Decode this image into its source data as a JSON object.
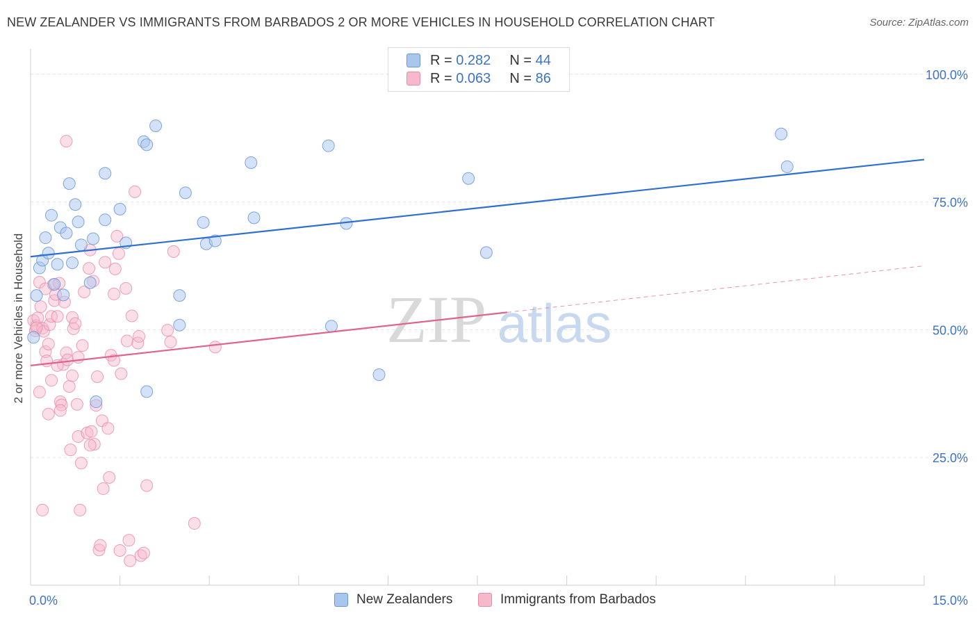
{
  "title": "NEW ZEALANDER VS IMMIGRANTS FROM BARBADOS 2 OR MORE VEHICLES IN HOUSEHOLD CORRELATION CHART",
  "source": "Source: ZipAtlas.com",
  "watermark": {
    "zip": "ZIP",
    "atlas": "atlas"
  },
  "legend": {
    "series1": {
      "r_label": "R =",
      "r_value": "0.282",
      "n_label": "N =",
      "n_value": "44"
    },
    "series2": {
      "r_label": "R =",
      "r_value": "0.063",
      "n_label": "N =",
      "n_value": "86"
    }
  },
  "bottom_legend": {
    "series1": "New Zealanders",
    "series2": "Immigrants from Barbados"
  },
  "colors": {
    "blue_fill": "#a9c6ef",
    "blue_stroke": "#6a97d6",
    "blue_line": "#2f6fcf",
    "pink_fill": "#f6b8cb",
    "pink_stroke": "#e98aa8",
    "pink_line": "#e0638d",
    "accent_text": "#3d72c4"
  },
  "chart_data": {
    "type": "scatter",
    "title": "NEW ZEALANDER VS IMMIGRANTS FROM BARBADOS 2 OR MORE VEHICLES IN HOUSEHOLD CORRELATION CHART",
    "xlabel": "",
    "ylabel": "2 or more Vehicles in Household",
    "xlim": [
      0,
      15
    ],
    "ylim": [
      0,
      105
    ],
    "x_tick_labels": {
      "min": "0.0%",
      "max": "15.0%"
    },
    "y_ticks": [
      {
        "value": 25,
        "label": "25.0%"
      },
      {
        "value": 50,
        "label": "50.0%"
      },
      {
        "value": 75,
        "label": "75.0%"
      },
      {
        "value": 100,
        "label": "100.0%"
      }
    ],
    "series": [
      {
        "name": "New Zealanders",
        "r": 0.282,
        "n": 44,
        "trend": {
          "x": [
            0,
            15
          ],
          "y": [
            64.3,
            83.3
          ],
          "dashed_from": null
        },
        "points": [
          [
            0.1,
            56.7
          ],
          [
            0.15,
            62.1
          ],
          [
            0.2,
            63.6
          ],
          [
            0.25,
            68.0
          ],
          [
            0.3,
            65.0
          ],
          [
            0.35,
            72.4
          ],
          [
            0.4,
            58.9
          ],
          [
            0.45,
            62.8
          ],
          [
            0.5,
            70.0
          ],
          [
            0.55,
            56.8
          ],
          [
            0.6,
            68.9
          ],
          [
            0.65,
            78.6
          ],
          [
            0.7,
            63.1
          ],
          [
            0.75,
            74.5
          ],
          [
            0.8,
            71.1
          ],
          [
            0.85,
            66.6
          ],
          [
            1.0,
            59.2
          ],
          [
            1.05,
            67.8
          ],
          [
            1.1,
            35.9
          ],
          [
            1.25,
            71.5
          ],
          [
            1.25,
            80.6
          ],
          [
            1.5,
            73.6
          ],
          [
            1.6,
            67.0
          ],
          [
            1.9,
            86.8
          ],
          [
            1.95,
            86.2
          ],
          [
            1.95,
            37.9
          ],
          [
            2.1,
            89.9
          ],
          [
            2.5,
            56.7
          ],
          [
            2.5,
            50.9
          ],
          [
            2.6,
            76.8
          ],
          [
            2.9,
            71.0
          ],
          [
            2.95,
            66.8
          ],
          [
            3.1,
            67.4
          ],
          [
            3.7,
            82.7
          ],
          [
            3.75,
            71.9
          ],
          [
            5.0,
            86.0
          ],
          [
            5.05,
            50.7
          ],
          [
            5.3,
            70.8
          ],
          [
            5.85,
            41.2
          ],
          [
            7.35,
            79.6
          ],
          [
            7.65,
            65.1
          ],
          [
            12.6,
            88.3
          ],
          [
            12.7,
            81.9
          ],
          [
            0.05,
            48.5
          ]
        ]
      },
      {
        "name": "Immigrants from Barbados",
        "r": 0.063,
        "n": 86,
        "trend": {
          "x": [
            0,
            15
          ],
          "y": [
            43.0,
            62.5
          ],
          "solid_until_x": 8.0
        },
        "points": [
          [
            0.05,
            51.8
          ],
          [
            0.08,
            49.8
          ],
          [
            0.1,
            50.8
          ],
          [
            0.12,
            52.3
          ],
          [
            0.15,
            59.3
          ],
          [
            0.17,
            54.5
          ],
          [
            0.2,
            50.3
          ],
          [
            0.22,
            49.7
          ],
          [
            0.25,
            45.7
          ],
          [
            0.27,
            43.9
          ],
          [
            0.3,
            33.5
          ],
          [
            0.32,
            51.0
          ],
          [
            0.35,
            52.6
          ],
          [
            0.38,
            58.8
          ],
          [
            0.4,
            55.7
          ],
          [
            0.42,
            56.9
          ],
          [
            0.45,
            52.6
          ],
          [
            0.48,
            59.1
          ],
          [
            0.5,
            35.9
          ],
          [
            0.52,
            35.3
          ],
          [
            0.55,
            43.2
          ],
          [
            0.57,
            55.4
          ],
          [
            0.6,
            45.5
          ],
          [
            0.62,
            44.1
          ],
          [
            0.65,
            38.9
          ],
          [
            0.67,
            26.5
          ],
          [
            0.7,
            52.4
          ],
          [
            0.72,
            50.2
          ],
          [
            0.75,
            51.2
          ],
          [
            0.78,
            35.4
          ],
          [
            0.8,
            29.1
          ],
          [
            0.83,
            14.7
          ],
          [
            0.85,
            23.9
          ],
          [
            0.87,
            46.9
          ],
          [
            0.9,
            57.4
          ],
          [
            0.95,
            29.8
          ],
          [
            0.98,
            62.0
          ],
          [
            1.0,
            65.6
          ],
          [
            1.02,
            30.1
          ],
          [
            1.05,
            59.5
          ],
          [
            1.07,
            27.6
          ],
          [
            1.1,
            35.2
          ],
          [
            1.12,
            40.8
          ],
          [
            1.15,
            6.9
          ],
          [
            1.17,
            7.8
          ],
          [
            1.2,
            32.2
          ],
          [
            1.22,
            18.9
          ],
          [
            1.25,
            63.2
          ],
          [
            1.3,
            30.7
          ],
          [
            1.32,
            21.1
          ],
          [
            1.35,
            45.0
          ],
          [
            1.4,
            57.0
          ],
          [
            1.42,
            61.9
          ],
          [
            1.45,
            68.3
          ],
          [
            1.48,
            64.9
          ],
          [
            1.5,
            6.8
          ],
          [
            1.52,
            41.4
          ],
          [
            1.6,
            58.1
          ],
          [
            1.62,
            47.8
          ],
          [
            1.65,
            8.8
          ],
          [
            1.67,
            4.8
          ],
          [
            1.7,
            52.7
          ],
          [
            1.75,
            77.0
          ],
          [
            1.8,
            47.4
          ],
          [
            1.82,
            48.7
          ],
          [
            1.85,
            5.8
          ],
          [
            1.9,
            6.3
          ],
          [
            1.95,
            19.5
          ],
          [
            2.3,
            49.9
          ],
          [
            2.35,
            47.6
          ],
          [
            2.4,
            65.3
          ],
          [
            2.75,
            12.1
          ],
          [
            3.1,
            46.6
          ],
          [
            0.6,
            86.9
          ],
          [
            0.2,
            14.7
          ],
          [
            0.15,
            37.8
          ],
          [
            0.1,
            50.4
          ],
          [
            0.25,
            58.0
          ],
          [
            0.3,
            47.2
          ],
          [
            0.35,
            40.1
          ],
          [
            0.45,
            43.0
          ],
          [
            0.5,
            34.2
          ],
          [
            0.7,
            41.0
          ],
          [
            0.8,
            44.6
          ],
          [
            1.0,
            27.4
          ],
          [
            1.4,
            44.0
          ]
        ]
      }
    ]
  }
}
